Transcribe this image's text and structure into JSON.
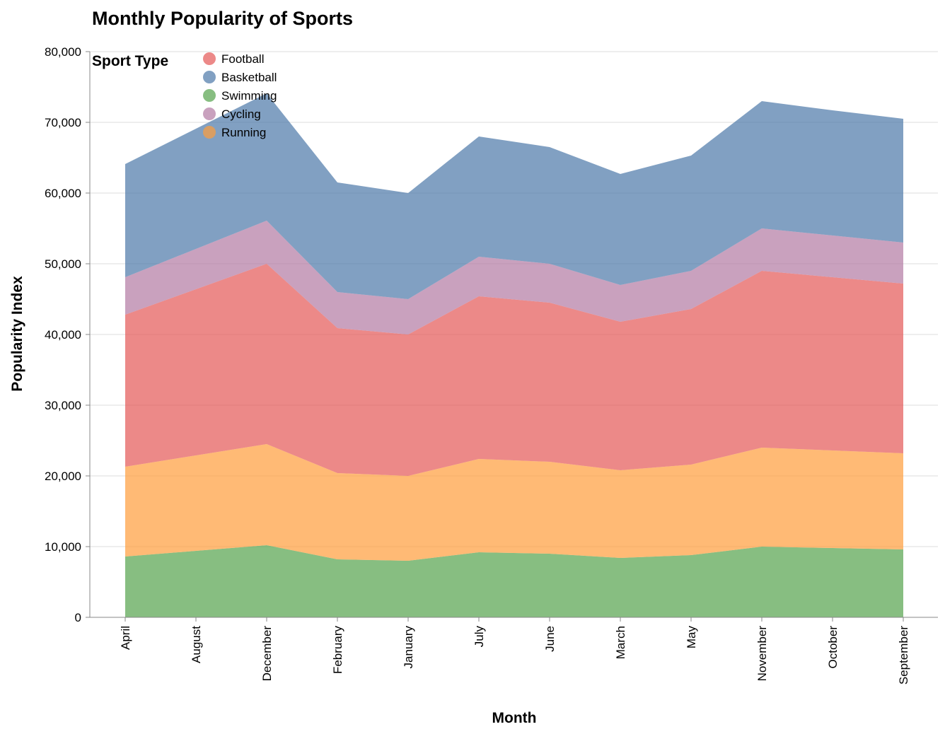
{
  "chart_data": {
    "type": "area",
    "stacked": true,
    "title": "Monthly Popularity of Sports",
    "xlabel": "Month",
    "ylabel": "Popularity Index",
    "ylim": [
      0,
      80000
    ],
    "yticks": [
      "0",
      "10,000",
      "20,000",
      "30,000",
      "40,000",
      "50,000",
      "60,000",
      "70,000",
      "80,000"
    ],
    "ytick_values": [
      0,
      10000,
      20000,
      30000,
      40000,
      50000,
      60000,
      70000,
      80000
    ],
    "grid": true,
    "legend": {
      "title": "Sport Type",
      "position": "top-left"
    },
    "categories": [
      "April",
      "August",
      "December",
      "February",
      "January",
      "July",
      "June",
      "March",
      "May",
      "November",
      "October",
      "September"
    ],
    "stack_order": [
      "Swimming",
      "Running",
      "Football",
      "Cycling",
      "Basketball"
    ],
    "series": [
      {
        "name": "Football",
        "color": "#e45756",
        "values": [
          21500,
          23500,
          25500,
          20500,
          20000,
          23000,
          22500,
          21000,
          22000,
          25000,
          24500,
          24000
        ]
      },
      {
        "name": "Basketball",
        "color": "#4c78a8",
        "values": [
          16000,
          17000,
          18000,
          15500,
          15000,
          17000,
          16500,
          15700,
          16300,
          18000,
          17700,
          17500
        ]
      },
      {
        "name": "Swimming",
        "color": "#54a24b",
        "values": [
          8600,
          9400,
          10200,
          8200,
          8000,
          9200,
          9000,
          8400,
          8800,
          10000,
          9800,
          9600
        ]
      },
      {
        "name": "Cycling",
        "color": "#b279a2",
        "values": [
          5300,
          5700,
          6100,
          5100,
          5000,
          5600,
          5500,
          5200,
          5400,
          6000,
          5900,
          5800
        ]
      },
      {
        "name": "Running",
        "color": "#ff9d3b",
        "values": [
          12700,
          13500,
          14300,
          12200,
          12000,
          13200,
          13000,
          12400,
          12800,
          14000,
          13800,
          13600
        ]
      }
    ]
  }
}
